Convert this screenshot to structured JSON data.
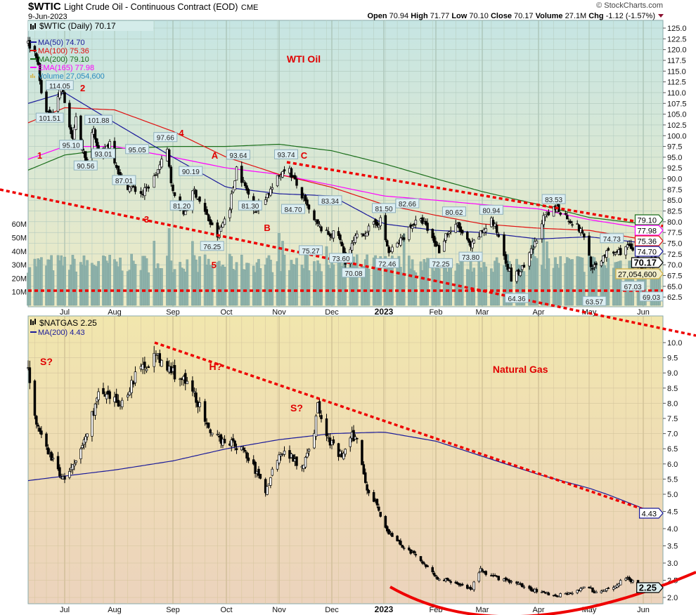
{
  "header": {
    "symbol": "$WTIC",
    "title": "Light Crude Oil - Continuous Contract (EOD)",
    "exchange": "CME",
    "date": "9-Jun-2023",
    "watermark": "© StockCharts.com",
    "open_label": "Open",
    "open": "70.94",
    "high_label": "High",
    "high": "71.77",
    "low_label": "Low",
    "low": "70.10",
    "close_label": "Close",
    "close": "70.17",
    "volume_label": "Volume",
    "volume": "27.1M",
    "chg_label": "Chg",
    "chg": "-1.12 (-1.57%)"
  },
  "colors": {
    "ma50": "#1a1a9a",
    "ma100": "#e01010",
    "ma200": "#1a6e1a",
    "ema165": "#ff00ff",
    "volume": "#2a8cc0",
    "trendline": "#ee0000",
    "label_fill": "#dceef2",
    "label_stroke": "#8fb0bc"
  },
  "legend_top": {
    "price": "$WTIC (Daily) 70.17",
    "ma50": "MA(50) 74.70",
    "ma100": "MA(100) 75.36",
    "ma200": "MA(200) 79.10",
    "ema165": "EMA(165) 77.98",
    "volume": "Volume 27,054,600"
  },
  "legend_bottom": {
    "price": "$NATGAS 2.25",
    "ma200": "MA(200) 4.43"
  },
  "tags_top": {
    "ma200": "79.10",
    "ema165": "77.98",
    "ma100": "75.36",
    "ma50": "74.70",
    "close": "70.17",
    "volume": "27,054,600"
  },
  "tags_bottom": {
    "ma200": "4.43",
    "close": "2.25"
  },
  "chart_data": [
    {
      "type": "candlestick",
      "title": "$WTIC Light Crude Oil - Continuous Contract (EOD)",
      "date_range": [
        "2022-06-09",
        "2023-06-09"
      ],
      "x_ticks": [
        "Jul",
        "Aug",
        "Sep",
        "Oct",
        "Nov",
        "Dec",
        "2023",
        "Feb",
        "Mar",
        "Apr",
        "May",
        "Jun"
      ],
      "y_ticks": [
        "125.0",
        "122.5",
        "120.0",
        "117.5",
        "115.0",
        "112.5",
        "110.0",
        "107.5",
        "105.0",
        "102.5",
        "100.0",
        "97.5",
        "95.0",
        "92.5",
        "90.0",
        "87.5",
        "85.0",
        "82.5",
        "80.0",
        "77.5",
        "75.0",
        "72.5",
        "70.0",
        "67.5",
        "65.0",
        "62.5"
      ],
      "ylim": [
        62.5,
        125
      ],
      "volume_ticks": [
        "60M",
        "50M",
        "40M",
        "30M",
        "20M",
        "10M"
      ],
      "last_bar": {
        "open": 70.94,
        "high": 71.77,
        "low": 70.1,
        "close": 70.17,
        "volume": 27054600
      },
      "close_path": [
        [
          "2022-06-09",
          121.5
        ],
        [
          "2022-06-14",
          118.9
        ],
        [
          "2022-06-17",
          109.6
        ],
        [
          "2022-06-22",
          104.2
        ],
        [
          "2022-06-29",
          111.5
        ],
        [
          "2022-07-06",
          98.5
        ],
        [
          "2022-07-08",
          104.8
        ],
        [
          "2022-07-14",
          93.5
        ],
        [
          "2022-07-19",
          102.5
        ],
        [
          "2022-07-22",
          94.7
        ],
        [
          "2022-07-29",
          98.6
        ],
        [
          "2022-08-05",
          89.0
        ],
        [
          "2022-08-16",
          86.5
        ],
        [
          "2022-08-22",
          90.2
        ],
        [
          "2022-08-29",
          96.5
        ],
        [
          "2022-09-01",
          86.6
        ],
        [
          "2022-09-07",
          81.9
        ],
        [
          "2022-09-13",
          87.3
        ],
        [
          "2022-09-23",
          78.7
        ],
        [
          "2022-09-26",
          76.7
        ],
        [
          "2022-10-03",
          83.6
        ],
        [
          "2022-10-07",
          92.6
        ],
        [
          "2022-10-18",
          82.8
        ],
        [
          "2022-10-28",
          87.9
        ],
        [
          "2022-11-04",
          92.6
        ],
        [
          "2022-11-07",
          91.8
        ],
        [
          "2022-11-14",
          85.9
        ],
        [
          "2022-11-21",
          80.0
        ],
        [
          "2022-11-28",
          77.2
        ],
        [
          "2022-12-05",
          76.9
        ],
        [
          "2022-12-09",
          71.0
        ],
        [
          "2022-12-15",
          76.1
        ],
        [
          "2022-12-22",
          78.0
        ],
        [
          "2022-12-30",
          80.3
        ],
        [
          "2023-01-04",
          72.8
        ],
        [
          "2023-01-10",
          75.1
        ],
        [
          "2023-01-18",
          79.5
        ],
        [
          "2023-01-24",
          80.1
        ],
        [
          "2023-02-03",
          73.4
        ],
        [
          "2023-02-07",
          77.1
        ],
        [
          "2023-02-14",
          79.1
        ],
        [
          "2023-02-22",
          74.0
        ],
        [
          "2023-03-06",
          80.5
        ],
        [
          "2023-03-10",
          76.7
        ],
        [
          "2023-03-16",
          68.4
        ],
        [
          "2023-03-17",
          66.7
        ],
        [
          "2023-03-24",
          69.3
        ],
        [
          "2023-03-31",
          75.7
        ],
        [
          "2023-04-03",
          80.4
        ],
        [
          "2023-04-12",
          83.3
        ],
        [
          "2023-04-24",
          78.8
        ],
        [
          "2023-04-28",
          76.8
        ],
        [
          "2023-05-03",
          68.6
        ],
        [
          "2023-05-10",
          72.6
        ],
        [
          "2023-05-17",
          72.8
        ],
        [
          "2023-05-24",
          74.3
        ],
        [
          "2023-05-31",
          68.1
        ],
        [
          "2023-06-05",
          72.2
        ],
        [
          "2023-06-09",
          70.17
        ]
      ],
      "ma50": [
        [
          "2022-06-09",
          107.5
        ],
        [
          "2022-07-01",
          110.0
        ],
        [
          "2022-08-01",
          103.0
        ],
        [
          "2022-09-01",
          95.0
        ],
        [
          "2022-10-01",
          88.0
        ],
        [
          "2022-11-01",
          86.5
        ],
        [
          "2022-12-01",
          86.0
        ],
        [
          "2023-01-01",
          79.5
        ],
        [
          "2023-02-01",
          78.0
        ],
        [
          "2023-03-01",
          77.5
        ],
        [
          "2023-04-01",
          76.0
        ],
        [
          "2023-05-01",
          76.5
        ],
        [
          "2023-06-09",
          74.7
        ]
      ],
      "ma100": [
        [
          "2022-06-09",
          103.0
        ],
        [
          "2022-07-01",
          106.5
        ],
        [
          "2022-08-01",
          106.0
        ],
        [
          "2022-09-01",
          101.0
        ],
        [
          "2022-10-01",
          95.0
        ],
        [
          "2022-11-01",
          91.0
        ],
        [
          "2022-12-01",
          88.0
        ],
        [
          "2023-01-01",
          84.0
        ],
        [
          "2023-02-01",
          81.5
        ],
        [
          "2023-03-01",
          79.5
        ],
        [
          "2023-04-01",
          78.5
        ],
        [
          "2023-05-01",
          78.0
        ],
        [
          "2023-06-09",
          75.36
        ]
      ],
      "ma200": [
        [
          "2022-06-09",
          92.0
        ],
        [
          "2022-07-01",
          95.5
        ],
        [
          "2022-08-01",
          97.0
        ],
        [
          "2022-09-01",
          97.5
        ],
        [
          "2022-10-01",
          97.5
        ],
        [
          "2022-11-01",
          98.0
        ],
        [
          "2022-12-01",
          96.5
        ],
        [
          "2023-01-01",
          93.5
        ],
        [
          "2023-02-01",
          90.0
        ],
        [
          "2023-03-01",
          87.0
        ],
        [
          "2023-04-01",
          84.0
        ],
        [
          "2023-05-01",
          81.0
        ],
        [
          "2023-06-09",
          79.1
        ]
      ],
      "ema165": [
        [
          "2022-06-09",
          94.5
        ],
        [
          "2022-07-01",
          97.5
        ],
        [
          "2022-08-01",
          97.5
        ],
        [
          "2022-09-01",
          95.0
        ],
        [
          "2022-10-01",
          92.5
        ],
        [
          "2022-11-01",
          91.0
        ],
        [
          "2022-12-01",
          88.5
        ],
        [
          "2023-01-01",
          86.0
        ],
        [
          "2023-02-01",
          85.0
        ],
        [
          "2023-03-01",
          84.0
        ],
        [
          "2023-04-01",
          83.0
        ],
        [
          "2023-05-01",
          80.5
        ],
        [
          "2023-06-09",
          77.98
        ]
      ],
      "price_labels": [
        {
          "text": "114.05",
          "date": "2022-06-28",
          "price": 115.9
        },
        {
          "text": "101.51",
          "date": "2022-06-22",
          "price": 104.1
        },
        {
          "text": "95.10",
          "date": "2022-07-05",
          "price": 97.8
        },
        {
          "text": "90.56",
          "date": "2022-07-14",
          "price": 93.0
        },
        {
          "text": "101.88",
          "date": "2022-07-22",
          "price": 103.6
        },
        {
          "text": "93.01",
          "date": "2022-07-25",
          "price": 95.8
        },
        {
          "text": "87.01",
          "date": "2022-08-06",
          "price": 89.6
        },
        {
          "text": "95.05",
          "date": "2022-08-13",
          "price": 96.8
        },
        {
          "text": "97.66",
          "date": "2022-08-28",
          "price": 99.6
        },
        {
          "text": "81.20",
          "date": "2022-09-06",
          "price": 83.7
        },
        {
          "text": "90.19",
          "date": "2022-09-11",
          "price": 91.7
        },
        {
          "text": "76.25",
          "date": "2022-09-23",
          "price": 74.3
        },
        {
          "text": "93.64",
          "date": "2022-10-08",
          "price": 95.5
        },
        {
          "text": "81.30",
          "date": "2022-10-15",
          "price": 83.7
        },
        {
          "text": "93.74",
          "date": "2022-11-05",
          "price": 95.6
        },
        {
          "text": "84.70",
          "date": "2022-11-09",
          "price": 82.9
        },
        {
          "text": "75.27",
          "date": "2022-11-19",
          "price": 73.3
        },
        {
          "text": "73.60",
          "date": "2022-11-25",
          "price": 71.5
        },
        {
          "text": "83.34",
          "date": "2022-11-30",
          "price": 84.9
        },
        {
          "text": "70.08",
          "date": "2022-12-14",
          "price": 68.1
        },
        {
          "text": "81.50",
          "date": "2023-01-01",
          "price": 83.1
        },
        {
          "text": "72.46",
          "date": "2023-01-03",
          "price": 70.3
        },
        {
          "text": "82.66",
          "date": "2023-01-15",
          "price": 84.2
        },
        {
          "text": "72.25",
          "date": "2023-02-04",
          "price": 70.3
        },
        {
          "text": "80.62",
          "date": "2023-02-12",
          "price": 82.3
        },
        {
          "text": "73.80",
          "date": "2023-02-22",
          "price": 71.8
        },
        {
          "text": "80.94",
          "date": "2023-03-06",
          "price": 82.7
        },
        {
          "text": "64.36",
          "date": "2023-03-20",
          "price": 62.2
        },
        {
          "text": "83.53",
          "date": "2023-04-10",
          "price": 85.2
        },
        {
          "text": "63.57",
          "date": "2023-05-04",
          "price": 61.5
        },
        {
          "text": "74.73",
          "date": "2023-05-14",
          "price": 76.1
        },
        {
          "text": "67.03",
          "date": "2023-05-26",
          "price": 65.0
        },
        {
          "text": "69.03",
          "date": "2023-06-05",
          "price": 66.8
        }
      ],
      "wave_labels": [
        {
          "text": "1",
          "date": "2022-06-16",
          "price": 95.5
        },
        {
          "text": "2",
          "date": "2022-06-30",
          "price": 117.5
        },
        {
          "text": "3",
          "date": "2022-08-18",
          "price": 80.6
        },
        {
          "text": "4",
          "date": "2022-08-26",
          "price": 100.7
        },
        {
          "text": "5",
          "date": "2022-09-24",
          "price": 70.0
        },
        {
          "text": "A",
          "date": "2022-09-30",
          "price": 95.5
        },
        {
          "text": "B",
          "date": "2022-10-25",
          "price": 78.7
        },
        {
          "text": "C",
          "date": "2022-11-04",
          "price": 95.5
        }
      ],
      "annotations": [
        {
          "text": "WTI Oil",
          "date": "2022-11-15",
          "price": 117.8
        }
      ]
    },
    {
      "type": "candlestick",
      "title": "$NATGAS",
      "date_range": [
        "2022-06-09",
        "2023-06-09"
      ],
      "x_ticks": [
        "Jul",
        "Aug",
        "Sep",
        "Oct",
        "Nov",
        "Dec",
        "2023",
        "Feb",
        "Mar",
        "Apr",
        "May",
        "Jun"
      ],
      "y_ticks": [
        "10.0",
        "9.5",
        "9.0",
        "8.5",
        "8.0",
        "7.5",
        "7.0",
        "6.5",
        "6.0",
        "5.5",
        "5.0",
        "4.5",
        "4.0",
        "3.5",
        "3.0",
        "2.5",
        "2.0"
      ],
      "ylim": [
        2.0,
        10.0
      ],
      "last_close": 2.25,
      "close_path": [
        [
          "2022-06-09",
          9.2
        ],
        [
          "2022-06-14",
          7.2
        ],
        [
          "2022-06-23",
          6.2
        ],
        [
          "2022-06-30",
          5.5
        ],
        [
          "2022-07-08",
          6.0
        ],
        [
          "2022-07-14",
          6.9
        ],
        [
          "2022-07-22",
          8.3
        ],
        [
          "2022-07-29",
          8.1
        ],
        [
          "2022-08-05",
          8.0
        ],
        [
          "2022-08-11",
          8.8
        ],
        [
          "2022-08-22",
          9.6
        ],
        [
          "2022-08-26",
          9.3
        ],
        [
          "2022-09-06",
          8.8
        ],
        [
          "2022-09-14",
          8.2
        ],
        [
          "2022-09-22",
          6.9
        ],
        [
          "2022-09-30",
          6.8
        ],
        [
          "2022-10-10",
          6.5
        ],
        [
          "2022-10-19",
          5.7
        ],
        [
          "2022-10-24",
          5.1
        ],
        [
          "2022-11-01",
          6.4
        ],
        [
          "2022-11-07",
          6.3
        ],
        [
          "2022-11-14",
          5.9
        ],
        [
          "2022-11-21",
          7.1
        ],
        [
          "2022-11-23",
          7.9
        ],
        [
          "2022-11-28",
          6.9
        ],
        [
          "2022-12-05",
          6.3
        ],
        [
          "2022-12-08",
          6.3
        ],
        [
          "2022-12-13",
          6.9
        ],
        [
          "2022-12-16",
          6.8
        ],
        [
          "2022-12-22",
          5.2
        ],
        [
          "2022-12-28",
          4.7
        ],
        [
          "2023-01-03",
          3.9
        ],
        [
          "2023-01-12",
          3.5
        ],
        [
          "2023-01-20",
          3.2
        ],
        [
          "2023-01-27",
          2.9
        ],
        [
          "2023-02-03",
          2.5
        ],
        [
          "2023-02-13",
          2.45
        ],
        [
          "2023-02-22",
          2.2
        ],
        [
          "2023-02-28",
          2.8
        ],
        [
          "2023-03-06",
          2.6
        ],
        [
          "2023-03-15",
          2.5
        ],
        [
          "2023-03-24",
          2.3
        ],
        [
          "2023-04-03",
          2.15
        ],
        [
          "2023-04-12",
          2.05
        ],
        [
          "2023-04-24",
          2.2
        ],
        [
          "2023-05-01",
          2.3
        ],
        [
          "2023-05-04",
          2.15
        ],
        [
          "2023-05-15",
          2.3
        ],
        [
          "2023-05-22",
          2.6
        ],
        [
          "2023-05-31",
          2.3
        ],
        [
          "2023-06-09",
          2.25
        ]
      ],
      "ma200": [
        [
          "2022-06-09",
          5.45
        ],
        [
          "2022-07-01",
          5.6
        ],
        [
          "2022-08-01",
          5.8
        ],
        [
          "2022-09-01",
          6.1
        ],
        [
          "2022-10-01",
          6.5
        ],
        [
          "2022-11-01",
          6.8
        ],
        [
          "2022-12-01",
          7.0
        ],
        [
          "2023-01-01",
          7.05
        ],
        [
          "2023-02-01",
          6.75
        ],
        [
          "2023-03-01",
          6.25
        ],
        [
          "2023-04-01",
          5.65
        ],
        [
          "2023-05-01",
          5.2
        ],
        [
          "2023-06-09",
          4.43
        ]
      ],
      "annotations": [
        {
          "text": "S?",
          "date": "2022-06-20",
          "price": 9.37
        },
        {
          "text": "H?",
          "date": "2022-09-25",
          "price": 9.21
        },
        {
          "text": "S?",
          "date": "2022-11-11",
          "price": 7.85
        },
        {
          "text": "Natural Gas",
          "date": "2023-03-22",
          "price": 9.12
        }
      ]
    }
  ]
}
